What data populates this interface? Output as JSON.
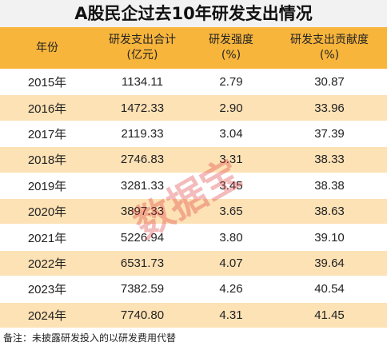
{
  "title": "A股民企过去10年研发支出情况",
  "table": {
    "header": [
      [
        "年份"
      ],
      [
        "研发支出合计",
        "(亿元)"
      ],
      [
        "研发强度",
        "(%)"
      ],
      [
        "研发支出贡献度",
        "(%)"
      ]
    ],
    "rows": [
      [
        "2015年",
        "1134.11",
        "2.79",
        "30.87"
      ],
      [
        "2016年",
        "1472.33",
        "2.90",
        "33.96"
      ],
      [
        "2017年",
        "2119.33",
        "3.04",
        "37.39"
      ],
      [
        "2018年",
        "2746.83",
        "3.31",
        "38.33"
      ],
      [
        "2019年",
        "3281.33",
        "3.45",
        "38.38"
      ],
      [
        "2020年",
        "3897.33",
        "3.65",
        "38.63"
      ],
      [
        "2021年",
        "5226.94",
        "3.80",
        "39.10"
      ],
      [
        "2022年",
        "6531.73",
        "4.07",
        "39.64"
      ],
      [
        "2023年",
        "7382.59",
        "4.26",
        "40.54"
      ],
      [
        "2024年",
        "7740.80",
        "4.31",
        "41.45"
      ]
    ]
  },
  "note": "备注：未披露研发投入的以研发费用代替",
  "watermark": "数据宝"
}
